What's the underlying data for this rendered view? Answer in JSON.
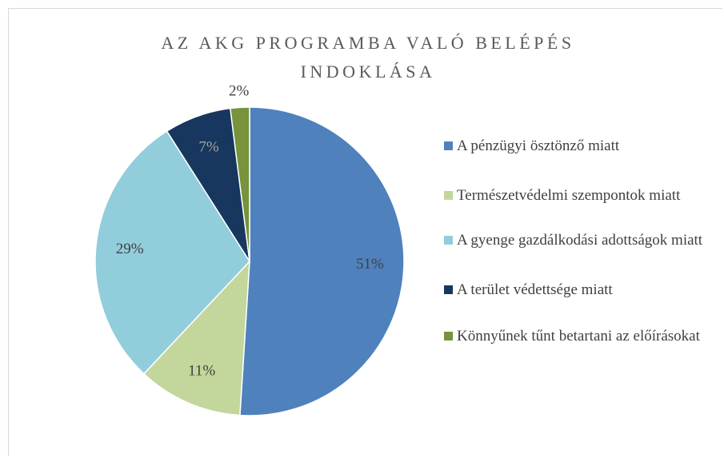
{
  "chart_data": {
    "type": "pie",
    "title": "AZ AKG PROGRAMBA VALÓ BELÉPÉS INDOKLÁSA",
    "categories": [
      "A pénzügyi ösztönző miatt",
      "Természetvédelmi szempontok miatt",
      "A gyenge gazdálkodási adottságok miatt",
      "A terület védettsége miatt",
      "Könnyűnek tűnt betartani az előírásokat"
    ],
    "values": [
      51,
      11,
      29,
      7,
      2
    ],
    "value_labels": [
      "51%",
      "11%",
      "29%",
      "7%",
      "2%"
    ],
    "colors": [
      "#4f81bd",
      "#c3d69b",
      "#92cddc",
      "#17375e",
      "#77933c"
    ],
    "legend": "right"
  }
}
